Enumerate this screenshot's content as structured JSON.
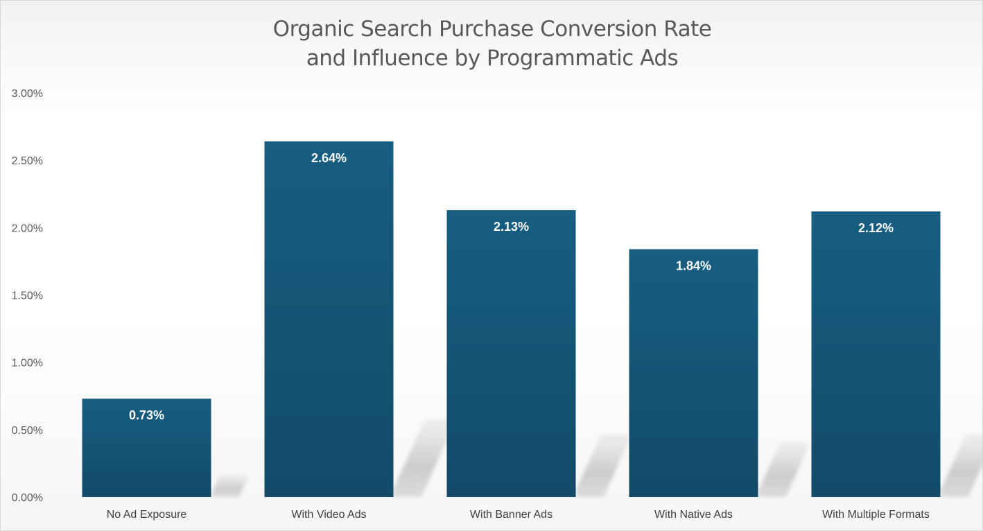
{
  "chart_data": {
    "type": "bar",
    "title_lines": [
      "Organic Search Purchase Conversion Rate",
      "and Influence by Programmatic Ads"
    ],
    "categories": [
      "No Ad Exposure",
      "With Video Ads",
      "With Banner Ads",
      "With Native Ads",
      "With Multiple Formats"
    ],
    "values": [
      0.73,
      2.64,
      2.13,
      1.84,
      2.12
    ],
    "value_labels": [
      "0.73%",
      "2.64%",
      "2.13%",
      "1.84%",
      "2.12%"
    ],
    "y_ticks": [
      0,
      0.5,
      1.0,
      1.5,
      2.0,
      2.5,
      3.0
    ],
    "y_tick_labels": [
      "0.00%",
      "0.50%",
      "1.00%",
      "1.50%",
      "2.00%",
      "2.50%",
      "3.00%"
    ],
    "ylim": [
      0,
      3.0
    ],
    "xlabel": "",
    "ylabel": "",
    "grid": false,
    "legend": "none",
    "bar_color_top": "#175e82",
    "bar_color_bottom": "#124a68",
    "shadow_color": "#bfbfbf"
  }
}
